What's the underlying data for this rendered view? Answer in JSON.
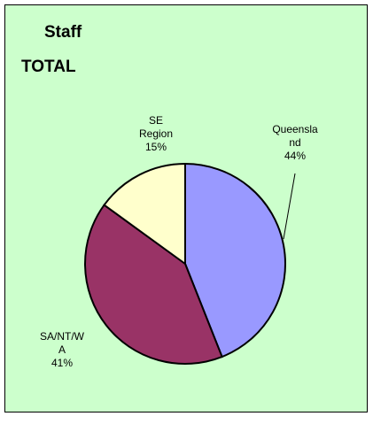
{
  "chart_data": {
    "type": "pie",
    "title": "Staff TOTAL",
    "categories": [
      "Queensland",
      "SA/NT/WA",
      "SE Region"
    ],
    "values": [
      44,
      41,
      15
    ],
    "value_labels": [
      "44%",
      "41%",
      "15%"
    ],
    "colors": [
      "#9999ff",
      "#993366",
      "#ffffcc"
    ]
  }
}
